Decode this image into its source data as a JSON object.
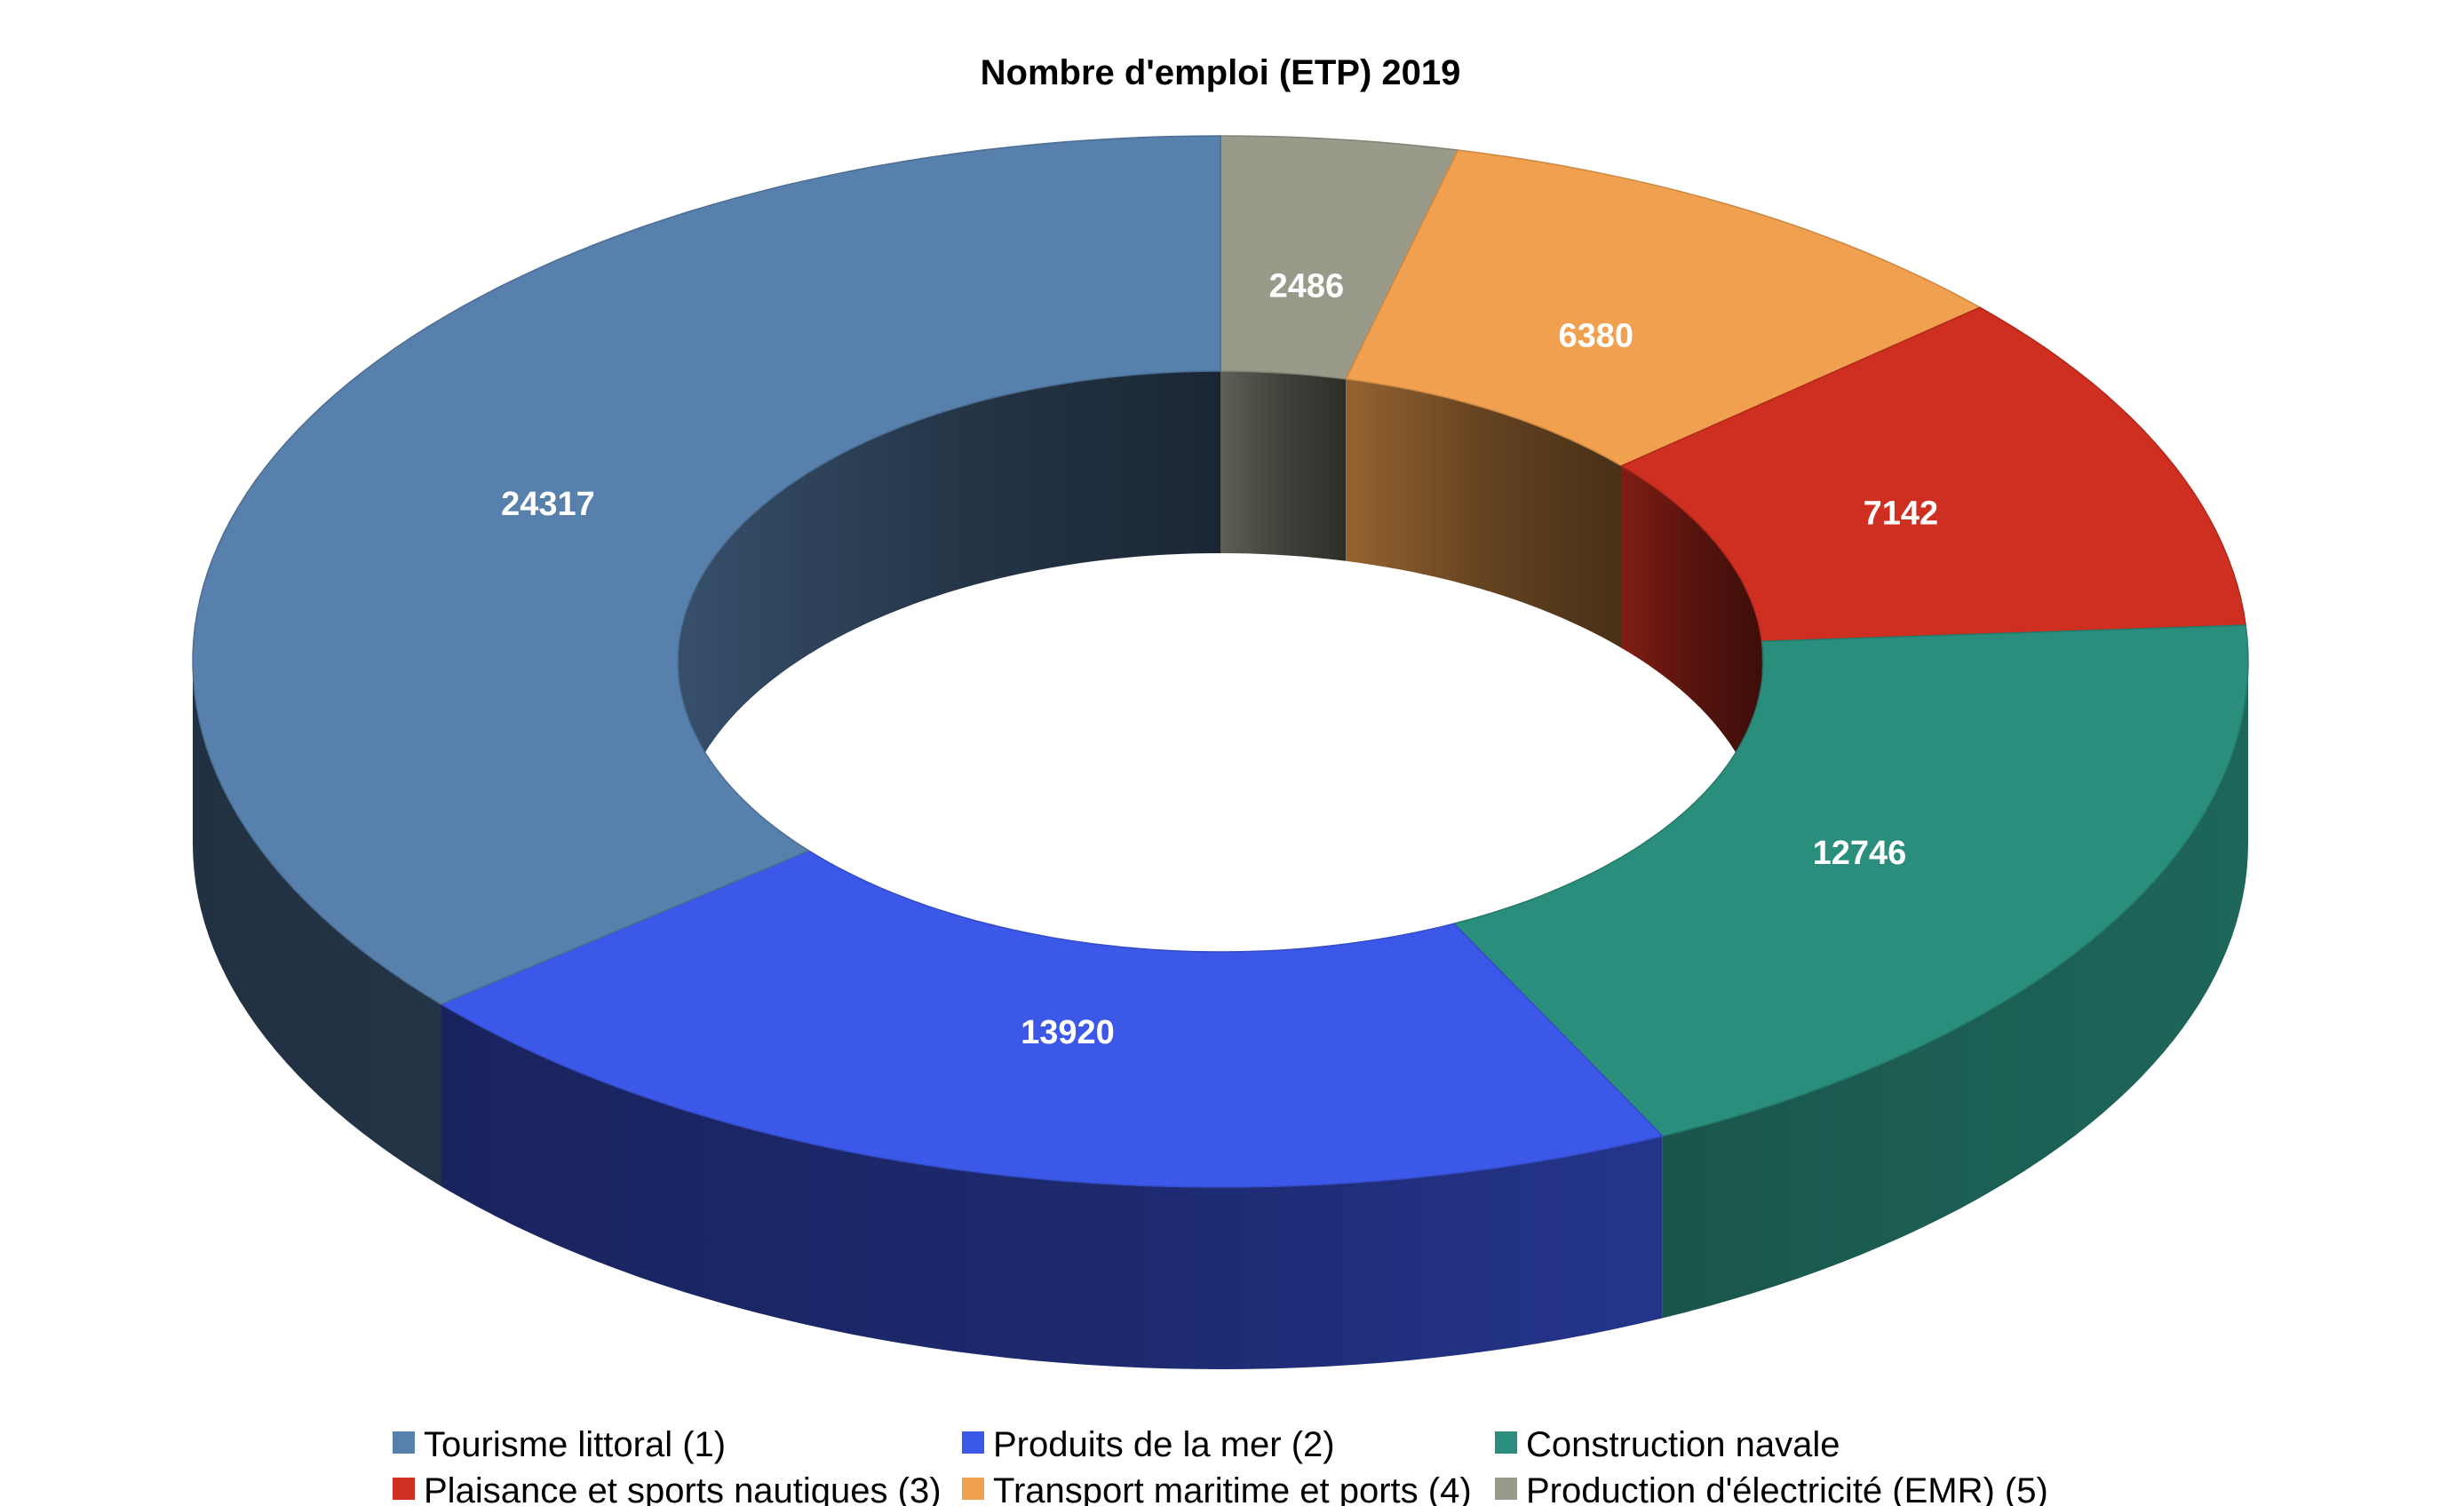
{
  "chart_data": {
    "type": "pie",
    "variant": "doughnut-3d",
    "title": "Nombre d'emploi (ETP) 2019",
    "legend_position": "bottom",
    "series": [
      {
        "values": [
          2486,
          6380,
          7142,
          12746,
          13920,
          24317
        ]
      }
    ],
    "categories": [
      "Production d'électricité (EMR) (5)",
      "Transport maritime et ports (4)",
      "Plaisance et sports nautiques (3)",
      "Construction navale",
      "Produits de la mer (2)",
      "Tourisme littoral (1)"
    ],
    "colors": [
      "#999a8a",
      "#f0a04e",
      "#cf2f20",
      "#2a8e7d",
      "#3c58e8",
      "#5880ad"
    ],
    "legend": [
      {
        "label": "Tourisme littoral (1)",
        "color": "#5880ad"
      },
      {
        "label": "Produits de la mer (2)",
        "color": "#3c58e8"
      },
      {
        "label": "Construction navale",
        "color": "#2a8e7d"
      },
      {
        "label": "Plaisance et sports nautiques (3)",
        "color": "#cf2f20"
      },
      {
        "label": "Transport maritime et ports (4)",
        "color": "#f0a04e"
      },
      {
        "label": "Production d'électricité (EMR) (5)",
        "color": "#999a8a"
      }
    ]
  }
}
